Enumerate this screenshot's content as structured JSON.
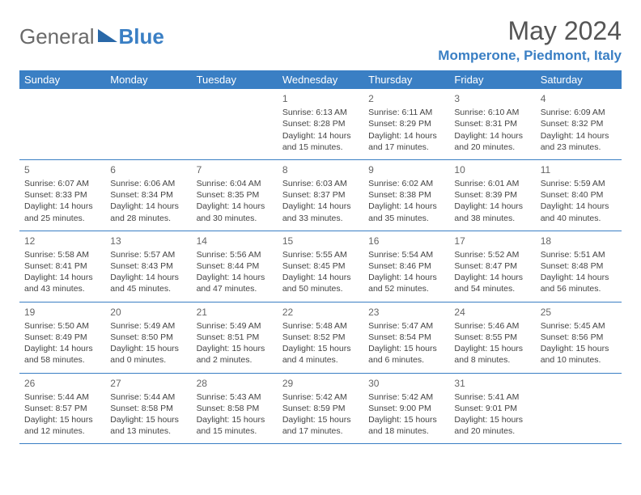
{
  "logo": {
    "part1": "General",
    "part2": "Blue"
  },
  "title": "May 2024",
  "location": "Momperone, Piedmont, Italy",
  "colors": {
    "header_bg": "#3a7fc4",
    "header_fg": "#ffffff",
    "border": "#3a7fc4",
    "text": "#444444",
    "title": "#555555",
    "logo_gray": "#6a6a6a",
    "logo_blue": "#3a7fc4"
  },
  "day_headers": [
    "Sunday",
    "Monday",
    "Tuesday",
    "Wednesday",
    "Thursday",
    "Friday",
    "Saturday"
  ],
  "weeks": [
    [
      null,
      null,
      null,
      {
        "n": "1",
        "sr": "6:13 AM",
        "ss": "8:28 PM",
        "dl1": "Daylight: 14 hours",
        "dl2": "and 15 minutes."
      },
      {
        "n": "2",
        "sr": "6:11 AM",
        "ss": "8:29 PM",
        "dl1": "Daylight: 14 hours",
        "dl2": "and 17 minutes."
      },
      {
        "n": "3",
        "sr": "6:10 AM",
        "ss": "8:31 PM",
        "dl1": "Daylight: 14 hours",
        "dl2": "and 20 minutes."
      },
      {
        "n": "4",
        "sr": "6:09 AM",
        "ss": "8:32 PM",
        "dl1": "Daylight: 14 hours",
        "dl2": "and 23 minutes."
      }
    ],
    [
      {
        "n": "5",
        "sr": "6:07 AM",
        "ss": "8:33 PM",
        "dl1": "Daylight: 14 hours",
        "dl2": "and 25 minutes."
      },
      {
        "n": "6",
        "sr": "6:06 AM",
        "ss": "8:34 PM",
        "dl1": "Daylight: 14 hours",
        "dl2": "and 28 minutes."
      },
      {
        "n": "7",
        "sr": "6:04 AM",
        "ss": "8:35 PM",
        "dl1": "Daylight: 14 hours",
        "dl2": "and 30 minutes."
      },
      {
        "n": "8",
        "sr": "6:03 AM",
        "ss": "8:37 PM",
        "dl1": "Daylight: 14 hours",
        "dl2": "and 33 minutes."
      },
      {
        "n": "9",
        "sr": "6:02 AM",
        "ss": "8:38 PM",
        "dl1": "Daylight: 14 hours",
        "dl2": "and 35 minutes."
      },
      {
        "n": "10",
        "sr": "6:01 AM",
        "ss": "8:39 PM",
        "dl1": "Daylight: 14 hours",
        "dl2": "and 38 minutes."
      },
      {
        "n": "11",
        "sr": "5:59 AM",
        "ss": "8:40 PM",
        "dl1": "Daylight: 14 hours",
        "dl2": "and 40 minutes."
      }
    ],
    [
      {
        "n": "12",
        "sr": "5:58 AM",
        "ss": "8:41 PM",
        "dl1": "Daylight: 14 hours",
        "dl2": "and 43 minutes."
      },
      {
        "n": "13",
        "sr": "5:57 AM",
        "ss": "8:43 PM",
        "dl1": "Daylight: 14 hours",
        "dl2": "and 45 minutes."
      },
      {
        "n": "14",
        "sr": "5:56 AM",
        "ss": "8:44 PM",
        "dl1": "Daylight: 14 hours",
        "dl2": "and 47 minutes."
      },
      {
        "n": "15",
        "sr": "5:55 AM",
        "ss": "8:45 PM",
        "dl1": "Daylight: 14 hours",
        "dl2": "and 50 minutes."
      },
      {
        "n": "16",
        "sr": "5:54 AM",
        "ss": "8:46 PM",
        "dl1": "Daylight: 14 hours",
        "dl2": "and 52 minutes."
      },
      {
        "n": "17",
        "sr": "5:52 AM",
        "ss": "8:47 PM",
        "dl1": "Daylight: 14 hours",
        "dl2": "and 54 minutes."
      },
      {
        "n": "18",
        "sr": "5:51 AM",
        "ss": "8:48 PM",
        "dl1": "Daylight: 14 hours",
        "dl2": "and 56 minutes."
      }
    ],
    [
      {
        "n": "19",
        "sr": "5:50 AM",
        "ss": "8:49 PM",
        "dl1": "Daylight: 14 hours",
        "dl2": "and 58 minutes."
      },
      {
        "n": "20",
        "sr": "5:49 AM",
        "ss": "8:50 PM",
        "dl1": "Daylight: 15 hours",
        "dl2": "and 0 minutes."
      },
      {
        "n": "21",
        "sr": "5:49 AM",
        "ss": "8:51 PM",
        "dl1": "Daylight: 15 hours",
        "dl2": "and 2 minutes."
      },
      {
        "n": "22",
        "sr": "5:48 AM",
        "ss": "8:52 PM",
        "dl1": "Daylight: 15 hours",
        "dl2": "and 4 minutes."
      },
      {
        "n": "23",
        "sr": "5:47 AM",
        "ss": "8:54 PM",
        "dl1": "Daylight: 15 hours",
        "dl2": "and 6 minutes."
      },
      {
        "n": "24",
        "sr": "5:46 AM",
        "ss": "8:55 PM",
        "dl1": "Daylight: 15 hours",
        "dl2": "and 8 minutes."
      },
      {
        "n": "25",
        "sr": "5:45 AM",
        "ss": "8:56 PM",
        "dl1": "Daylight: 15 hours",
        "dl2": "and 10 minutes."
      }
    ],
    [
      {
        "n": "26",
        "sr": "5:44 AM",
        "ss": "8:57 PM",
        "dl1": "Daylight: 15 hours",
        "dl2": "and 12 minutes."
      },
      {
        "n": "27",
        "sr": "5:44 AM",
        "ss": "8:58 PM",
        "dl1": "Daylight: 15 hours",
        "dl2": "and 13 minutes."
      },
      {
        "n": "28",
        "sr": "5:43 AM",
        "ss": "8:58 PM",
        "dl1": "Daylight: 15 hours",
        "dl2": "and 15 minutes."
      },
      {
        "n": "29",
        "sr": "5:42 AM",
        "ss": "8:59 PM",
        "dl1": "Daylight: 15 hours",
        "dl2": "and 17 minutes."
      },
      {
        "n": "30",
        "sr": "5:42 AM",
        "ss": "9:00 PM",
        "dl1": "Daylight: 15 hours",
        "dl2": "and 18 minutes."
      },
      {
        "n": "31",
        "sr": "5:41 AM",
        "ss": "9:01 PM",
        "dl1": "Daylight: 15 hours",
        "dl2": "and 20 minutes."
      },
      null
    ]
  ],
  "labels": {
    "sunrise": "Sunrise:",
    "sunset": "Sunset:"
  }
}
